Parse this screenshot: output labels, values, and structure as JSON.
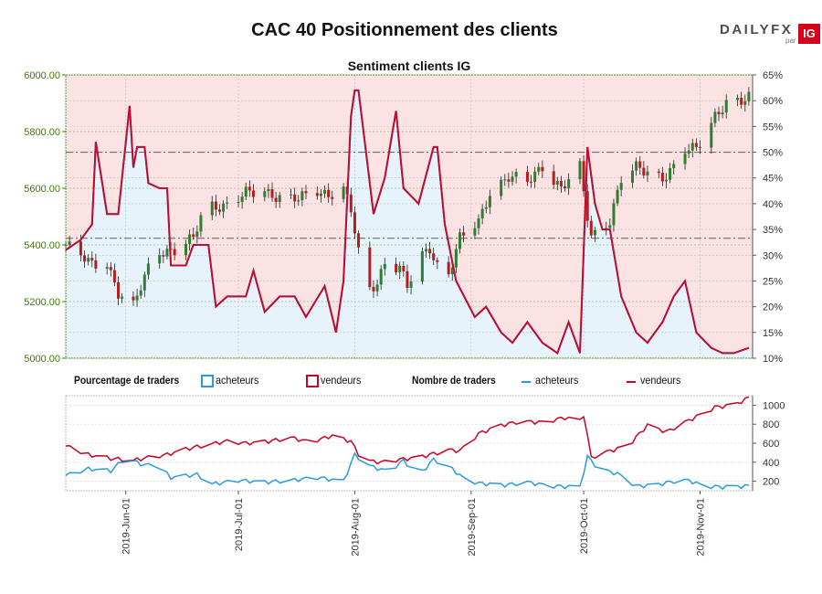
{
  "title": "CAC 40 Positionnement des clients",
  "logo": {
    "brand": "DAILYFX",
    "par": "par",
    "mark": "IG"
  },
  "colors": {
    "buyers": "#2b9bd8",
    "sellers": "#cc0022",
    "bull_candle": "#2e7d32",
    "bear_candle": "#b71c1c",
    "buyer_fill": "#e7f3fb",
    "seller_fill": "#fbe3e4",
    "axis_price": "#3a7d00"
  },
  "legend": {
    "pct_heading": "Pourcentage de traders",
    "pct_buyers": "acheteurs",
    "pct_sellers": "vendeurs",
    "cnt_heading": "Nombre de traders",
    "cnt_buyers": "acheteurs",
    "cnt_sellers": "vendeurs"
  },
  "chart_data": [
    {
      "type": "candlestick",
      "title": "Sentiment clients IG",
      "left_axis": {
        "ylim": [
          5000,
          6000
        ],
        "ticks": [
          "5000.00",
          "5200.00",
          "5400.00",
          "5600.00",
          "5800.00",
          "6000.00"
        ]
      },
      "right_axis": {
        "ylim": [
          10,
          65
        ],
        "ticks": [
          "10%",
          "15%",
          "20%",
          "25%",
          "30%",
          "35%",
          "40%",
          "45%",
          "50%",
          "55%",
          "60%",
          "65%"
        ]
      },
      "reference_lines": [
        {
          "value_pct": 50,
          "style": "dash-dot"
        },
        {
          "value_pct": 33.3,
          "style": "dash-dot"
        }
      ],
      "x_ticks": [
        "2019-Jun-01",
        "2019-Jul-01",
        "2019-Aug-01",
        "2019-Sep-01",
        "2019-Oct-01",
        "2019-Nov-01"
      ],
      "price_anchors": [
        [
          "2019-05-16",
          5400
        ],
        [
          "2019-05-20",
          5360
        ],
        [
          "2019-05-23",
          5330
        ],
        [
          "2019-05-27",
          5340
        ],
        [
          "2019-05-30",
          5230
        ],
        [
          "2019-06-03",
          5180
        ],
        [
          "2019-06-05",
          5250
        ],
        [
          "2019-06-07",
          5320
        ],
        [
          "2019-06-10",
          5380
        ],
        [
          "2019-06-14",
          5380
        ],
        [
          "2019-06-19",
          5420
        ],
        [
          "2019-06-21",
          5500
        ],
        [
          "2019-06-24",
          5540
        ],
        [
          "2019-06-28",
          5540
        ],
        [
          "2019-07-03",
          5580
        ],
        [
          "2019-07-08",
          5590
        ],
        [
          "2019-07-12",
          5570
        ],
        [
          "2019-07-17",
          5560
        ],
        [
          "2019-07-22",
          5590
        ],
        [
          "2019-07-25",
          5580
        ],
        [
          "2019-07-29",
          5600
        ],
        [
          "2019-07-31",
          5520
        ],
        [
          "2019-08-02",
          5370
        ],
        [
          "2019-08-05",
          5240
        ],
        [
          "2019-08-07",
          5270
        ],
        [
          "2019-08-09",
          5340
        ],
        [
          "2019-08-13",
          5320
        ],
        [
          "2019-08-15",
          5250
        ],
        [
          "2019-08-19",
          5360
        ],
        [
          "2019-08-21",
          5390
        ],
        [
          "2019-08-23",
          5330
        ],
        [
          "2019-08-26",
          5300
        ],
        [
          "2019-08-29",
          5420
        ],
        [
          "2019-09-03",
          5480
        ],
        [
          "2019-09-06",
          5590
        ],
        [
          "2019-09-11",
          5640
        ],
        [
          "2019-09-16",
          5620
        ],
        [
          "2019-09-20",
          5680
        ],
        [
          "2019-09-25",
          5600
        ],
        [
          "2019-09-30",
          5670
        ],
        [
          "2019-10-02",
          5500
        ],
        [
          "2019-10-03",
          5430
        ],
        [
          "2019-10-08",
          5490
        ],
        [
          "2019-10-11",
          5630
        ],
        [
          "2019-10-15",
          5670
        ],
        [
          "2019-10-18",
          5660
        ],
        [
          "2019-10-22",
          5640
        ],
        [
          "2019-10-25",
          5670
        ],
        [
          "2019-10-28",
          5730
        ],
        [
          "2019-10-31",
          5740
        ],
        [
          "2019-11-05",
          5860
        ],
        [
          "2019-11-08",
          5900
        ],
        [
          "2019-11-12",
          5900
        ],
        [
          "2019-11-14",
          5920
        ]
      ],
      "buyers_pct_anchors": [
        [
          "2019-05-16",
          31
        ],
        [
          "2019-05-20",
          33
        ],
        [
          "2019-05-23",
          36
        ],
        [
          "2019-05-24",
          52
        ],
        [
          "2019-05-27",
          38
        ],
        [
          "2019-05-30",
          38
        ],
        [
          "2019-06-02",
          59
        ],
        [
          "2019-06-03",
          47
        ],
        [
          "2019-06-04",
          51
        ],
        [
          "2019-06-06",
          51
        ],
        [
          "2019-06-07",
          44
        ],
        [
          "2019-06-10",
          43
        ],
        [
          "2019-06-12",
          43
        ],
        [
          "2019-06-13",
          28
        ],
        [
          "2019-06-17",
          28
        ],
        [
          "2019-06-19",
          32
        ],
        [
          "2019-06-23",
          32
        ],
        [
          "2019-06-25",
          20
        ],
        [
          "2019-06-28",
          22
        ],
        [
          "2019-07-03",
          22
        ],
        [
          "2019-07-05",
          27
        ],
        [
          "2019-07-08",
          19
        ],
        [
          "2019-07-12",
          22
        ],
        [
          "2019-07-16",
          22
        ],
        [
          "2019-07-19",
          18
        ],
        [
          "2019-07-24",
          24
        ],
        [
          "2019-07-27",
          15
        ],
        [
          "2019-07-29",
          25
        ],
        [
          "2019-07-31",
          57
        ],
        [
          "2019-08-01",
          62
        ],
        [
          "2019-08-02",
          62
        ],
        [
          "2019-08-06",
          38
        ],
        [
          "2019-08-09",
          45
        ],
        [
          "2019-08-12",
          58
        ],
        [
          "2019-08-14",
          43
        ],
        [
          "2019-08-18",
          40
        ],
        [
          "2019-08-22",
          51
        ],
        [
          "2019-08-23",
          51
        ],
        [
          "2019-08-25",
          36
        ],
        [
          "2019-08-28",
          25
        ],
        [
          "2019-09-02",
          18
        ],
        [
          "2019-09-05",
          20
        ],
        [
          "2019-09-09",
          15
        ],
        [
          "2019-09-12",
          13
        ],
        [
          "2019-09-16",
          17
        ],
        [
          "2019-09-20",
          13
        ],
        [
          "2019-09-24",
          11
        ],
        [
          "2019-09-27",
          17
        ],
        [
          "2019-09-30",
          11
        ],
        [
          "2019-10-02",
          51
        ],
        [
          "2019-10-04",
          40
        ],
        [
          "2019-10-06",
          35
        ],
        [
          "2019-10-08",
          35
        ],
        [
          "2019-10-11",
          22
        ],
        [
          "2019-10-15",
          15
        ],
        [
          "2019-10-18",
          13
        ],
        [
          "2019-10-22",
          17
        ],
        [
          "2019-10-25",
          22
        ],
        [
          "2019-10-28",
          25
        ],
        [
          "2019-10-31",
          15
        ],
        [
          "2019-11-04",
          12
        ],
        [
          "2019-11-07",
          11
        ],
        [
          "2019-11-10",
          11
        ],
        [
          "2019-11-14",
          12
        ]
      ]
    },
    {
      "type": "line",
      "right_axis": {
        "ylim": [
          100,
          1100
        ],
        "ticks": [
          "200",
          "400",
          "600",
          "800",
          "1000"
        ]
      },
      "series": [
        {
          "name": "vendeurs",
          "anchors": [
            [
              "2019-05-16",
              570
            ],
            [
              "2019-05-22",
              480
            ],
            [
              "2019-05-28",
              440
            ],
            [
              "2019-06-03",
              420
            ],
            [
              "2019-06-07",
              450
            ],
            [
              "2019-06-12",
              480
            ],
            [
              "2019-06-16",
              530
            ],
            [
              "2019-06-22",
              580
            ],
            [
              "2019-06-28",
              620
            ],
            [
              "2019-07-03",
              600
            ],
            [
              "2019-07-09",
              620
            ],
            [
              "2019-07-15",
              660
            ],
            [
              "2019-07-20",
              610
            ],
            [
              "2019-07-26",
              680
            ],
            [
              "2019-07-31",
              620
            ],
            [
              "2019-08-03",
              420
            ],
            [
              "2019-08-08",
              400
            ],
            [
              "2019-08-13",
              430
            ],
            [
              "2019-08-18",
              450
            ],
            [
              "2019-08-23",
              500
            ],
            [
              "2019-08-26",
              530
            ],
            [
              "2019-08-29",
              520
            ],
            [
              "2019-09-03",
              700
            ],
            [
              "2019-09-08",
              780
            ],
            [
              "2019-09-14",
              830
            ],
            [
              "2019-09-20",
              820
            ],
            [
              "2019-09-26",
              870
            ],
            [
              "2019-09-30",
              840
            ],
            [
              "2019-10-01",
              900
            ],
            [
              "2019-10-03",
              450
            ],
            [
              "2019-10-08",
              520
            ],
            [
              "2019-10-13",
              580
            ],
            [
              "2019-10-18",
              790
            ],
            [
              "2019-10-23",
              720
            ],
            [
              "2019-10-28",
              820
            ],
            [
              "2019-11-01",
              900
            ],
            [
              "2019-11-05",
              980
            ],
            [
              "2019-11-10",
              1000
            ],
            [
              "2019-11-14",
              1080
            ]
          ]
        },
        {
          "name": "acheteurs",
          "anchors": [
            [
              "2019-05-16",
              260
            ],
            [
              "2019-05-22",
              330
            ],
            [
              "2019-05-28",
              310
            ],
            [
              "2019-06-01",
              450
            ],
            [
              "2019-06-05",
              380
            ],
            [
              "2019-06-10",
              350
            ],
            [
              "2019-06-13",
              240
            ],
            [
              "2019-06-20",
              270
            ],
            [
              "2019-06-24",
              170
            ],
            [
              "2019-07-01",
              210
            ],
            [
              "2019-07-08",
              190
            ],
            [
              "2019-07-15",
              210
            ],
            [
              "2019-07-22",
              240
            ],
            [
              "2019-07-29",
              200
            ],
            [
              "2019-08-01",
              480
            ],
            [
              "2019-08-05",
              360
            ],
            [
              "2019-08-10",
              300
            ],
            [
              "2019-08-14",
              420
            ],
            [
              "2019-08-18",
              260
            ],
            [
              "2019-08-22",
              430
            ],
            [
              "2019-08-27",
              330
            ],
            [
              "2019-08-30",
              230
            ],
            [
              "2019-09-03",
              180
            ],
            [
              "2019-09-10",
              160
            ],
            [
              "2019-09-16",
              190
            ],
            [
              "2019-09-22",
              150
            ],
            [
              "2019-09-30",
              140
            ],
            [
              "2019-10-02",
              460
            ],
            [
              "2019-10-05",
              330
            ],
            [
              "2019-10-10",
              280
            ],
            [
              "2019-10-15",
              150
            ],
            [
              "2019-10-20",
              160
            ],
            [
              "2019-10-25",
              200
            ],
            [
              "2019-10-29",
              210
            ],
            [
              "2019-11-02",
              150
            ],
            [
              "2019-11-07",
              140
            ],
            [
              "2019-11-14",
              150
            ]
          ]
        }
      ]
    }
  ]
}
